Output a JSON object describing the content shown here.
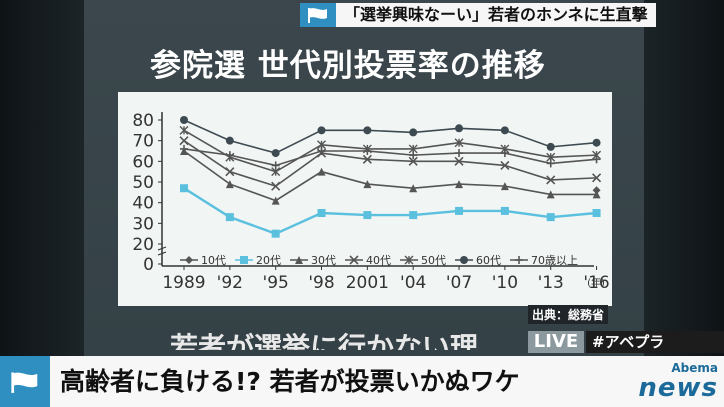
{
  "topbar": {
    "text": "「選挙興味なーい」若者のホンネに生直撃"
  },
  "board": {
    "title": "参院選 世代別投票率の推移",
    "source": "出典：総務省",
    "bottom_text": "若者が選挙に行かない理"
  },
  "chart_data": {
    "type": "line",
    "title": "参院選 世代別投票率の推移",
    "x": [
      "1989",
      "'92",
      "'95",
      "'98",
      "2001",
      "'04",
      "'07",
      "'10",
      "'13",
      "'16"
    ],
    "x_unit": "(年)",
    "ylim": [
      0,
      80
    ],
    "yticks": [
      0,
      20,
      30,
      40,
      50,
      60,
      70,
      80
    ],
    "grid": false,
    "legend": "bottom",
    "series": [
      {
        "name": "10代",
        "marker": "diamond",
        "color": "#555555",
        "values": [
          null,
          null,
          null,
          null,
          null,
          null,
          null,
          null,
          null,
          46
        ]
      },
      {
        "name": "20代",
        "marker": "square",
        "color": "#5bc0de",
        "values": [
          47,
          33,
          25,
          35,
          34,
          34,
          36,
          36,
          33,
          35
        ]
      },
      {
        "name": "30代",
        "marker": "triangle",
        "color": "#555555",
        "values": [
          65,
          49,
          41,
          55,
          49,
          47,
          49,
          48,
          44,
          44
        ]
      },
      {
        "name": "40代",
        "marker": "x",
        "color": "#555555",
        "values": [
          70,
          55,
          48,
          64,
          61,
          60,
          60,
          58,
          51,
          52
        ]
      },
      {
        "name": "50代",
        "marker": "star",
        "color": "#555555",
        "values": [
          75,
          62,
          55,
          68,
          66,
          66,
          69,
          66,
          62,
          63
        ]
      },
      {
        "name": "60代",
        "marker": "circle",
        "color": "#3d4a52",
        "values": [
          80,
          70,
          64,
          75,
          75,
          74,
          76,
          75,
          67,
          69
        ]
      },
      {
        "name": "70歳以上",
        "marker": "plus",
        "color": "#555555",
        "values": [
          66,
          63,
          58,
          65,
          65,
          63,
          64,
          64,
          59,
          61
        ]
      }
    ]
  },
  "live": {
    "label": "LIVE",
    "hashtag": "#アベプラ"
  },
  "lower_third": {
    "text": "高齢者に負ける!? 若者が投票いかぬワケ"
  },
  "logo": {
    "brand": "Abema",
    "news": "news"
  },
  "colors": {
    "accent": "#2f8fc0",
    "live_bg": "#8c9aa0"
  },
  "icons": {
    "topbar": "flag-icon",
    "lower": "flag-icon"
  }
}
